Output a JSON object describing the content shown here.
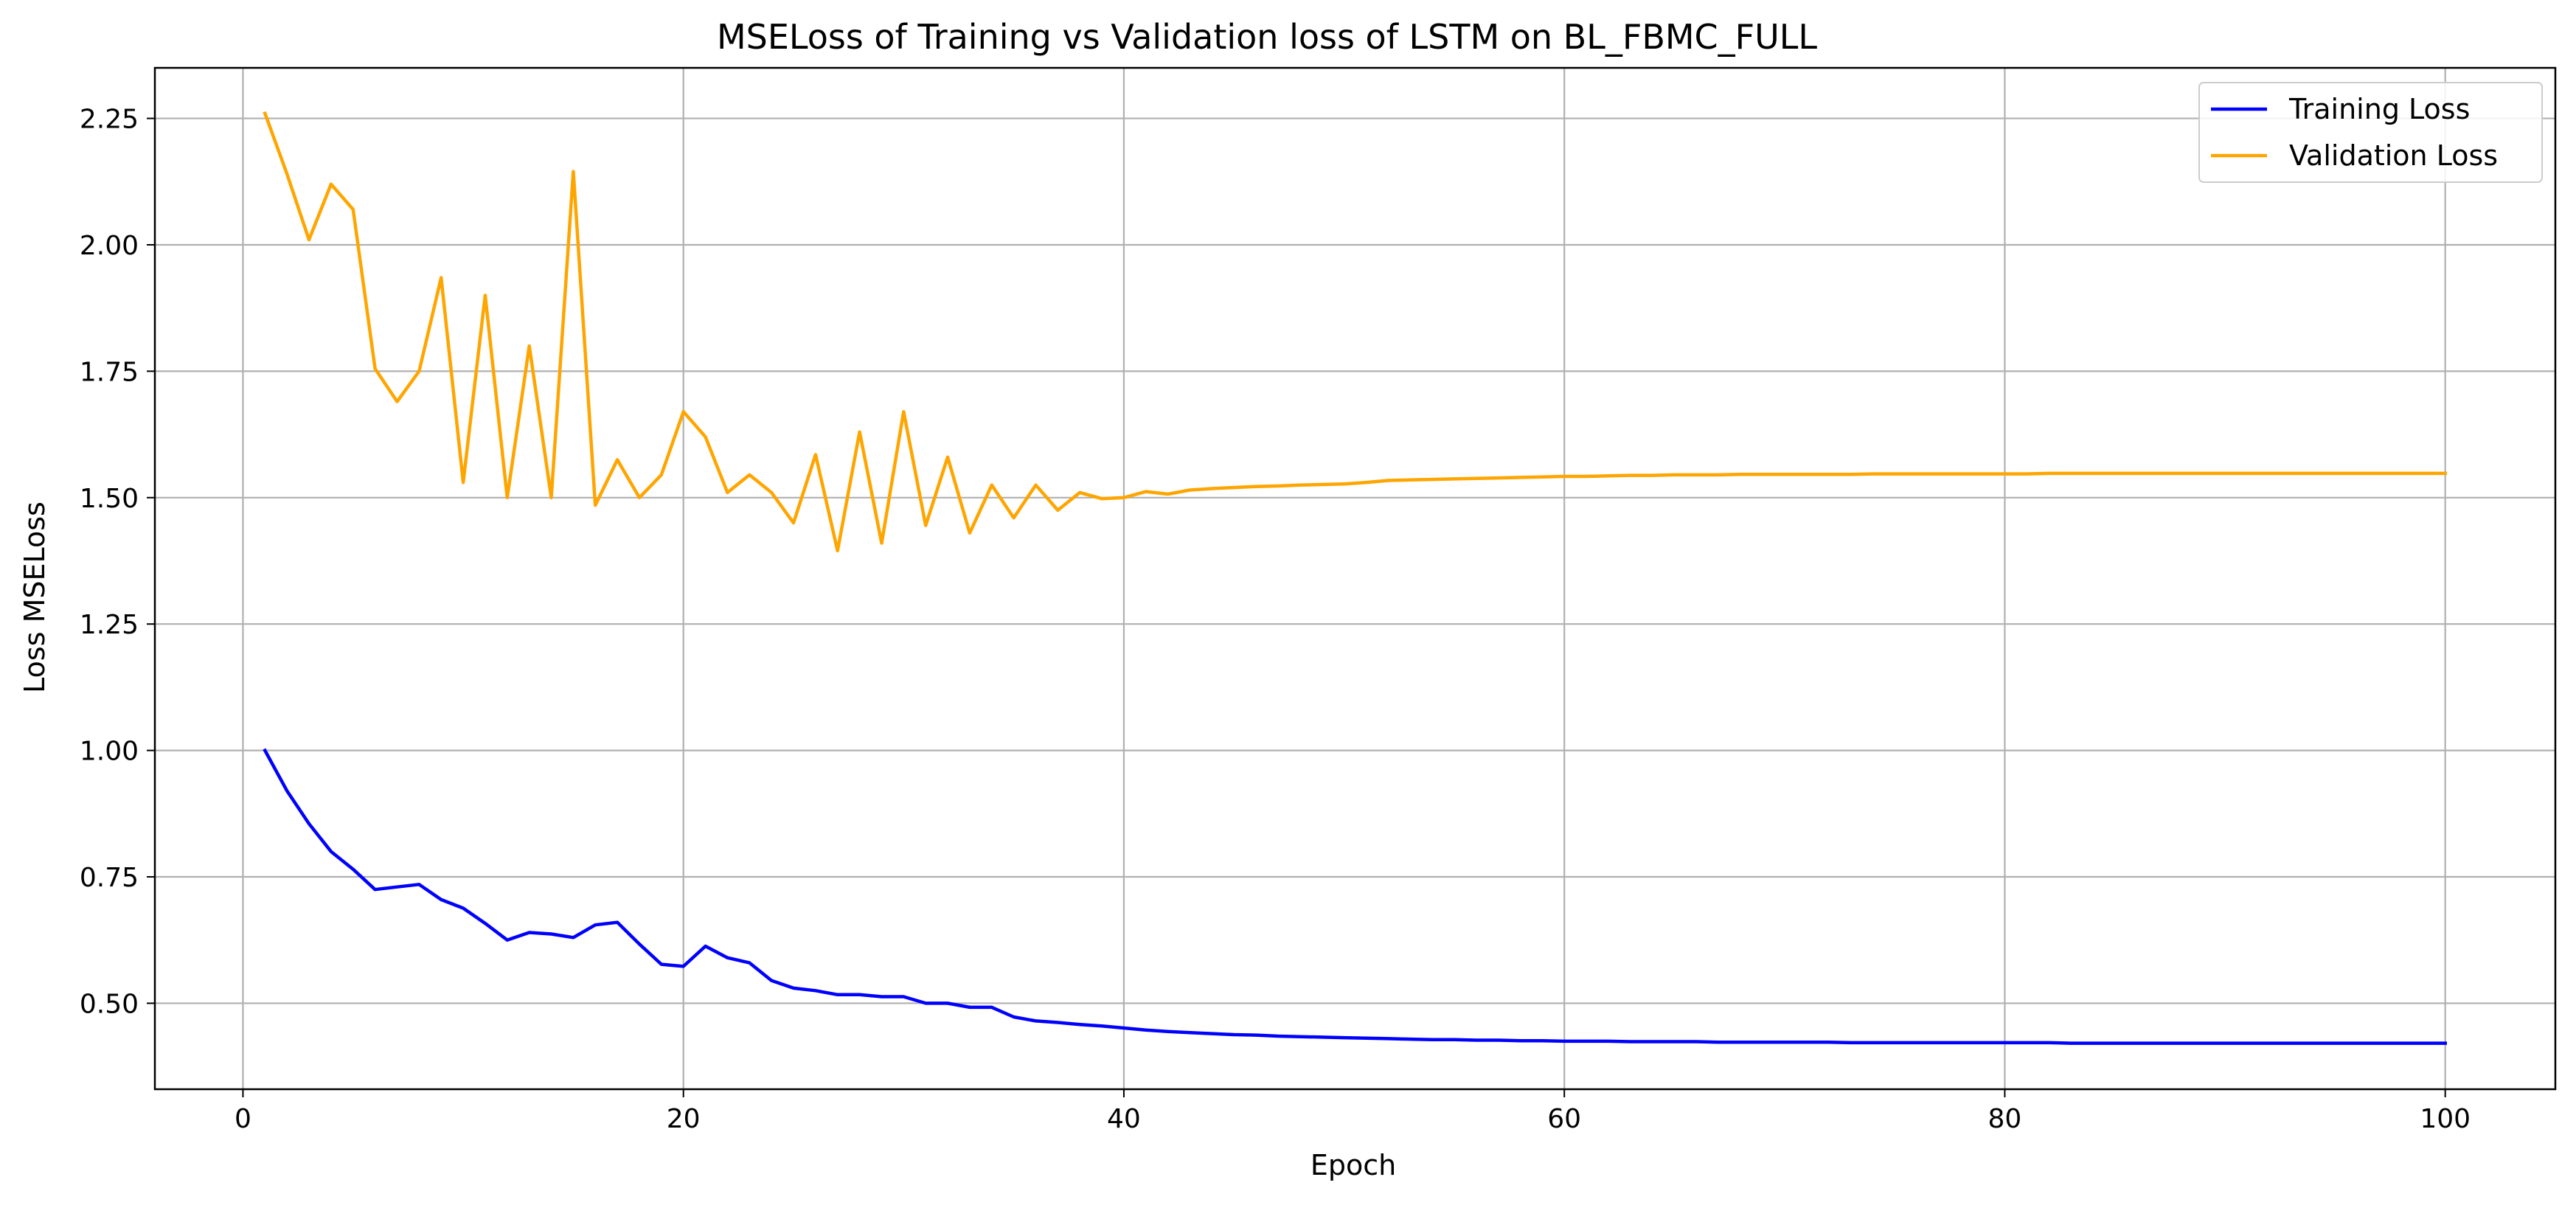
{
  "chart_data": {
    "type": "line",
    "title": "MSELoss of Training vs Validation loss of LSTM on BL_FBMC_FULL",
    "xlabel": "Epoch",
    "ylabel": "Loss MSELoss",
    "xlim": [
      -4,
      105
    ],
    "ylim": [
      0.33,
      2.35
    ],
    "xticks": [
      0,
      20,
      40,
      60,
      80,
      100
    ],
    "yticks": [
      0.5,
      0.75,
      1.0,
      1.25,
      1.5,
      1.75,
      2.0,
      2.25
    ],
    "ytick_labels": [
      "0.50",
      "0.75",
      "1.00",
      "1.25",
      "1.50",
      "1.75",
      "2.00",
      "2.25"
    ],
    "grid": true,
    "legend_position": "top-right",
    "x": [
      1,
      2,
      3,
      4,
      5,
      6,
      7,
      8,
      9,
      10,
      11,
      12,
      13,
      14,
      15,
      16,
      17,
      18,
      19,
      20,
      21,
      22,
      23,
      24,
      25,
      26,
      27,
      28,
      29,
      30,
      31,
      32,
      33,
      34,
      35,
      36,
      37,
      38,
      39,
      40,
      41,
      42,
      43,
      44,
      45,
      46,
      47,
      48,
      49,
      50,
      51,
      52,
      53,
      54,
      55,
      56,
      57,
      58,
      59,
      60,
      61,
      62,
      63,
      64,
      65,
      66,
      67,
      68,
      69,
      70,
      71,
      72,
      73,
      74,
      75,
      76,
      77,
      78,
      79,
      80,
      81,
      82,
      83,
      84,
      85,
      86,
      87,
      88,
      89,
      90,
      91,
      92,
      93,
      94,
      95,
      96,
      97,
      98,
      99,
      100
    ],
    "series": [
      {
        "name": "Training Loss",
        "color": "#0000ff",
        "values": [
          1.0,
          0.92,
          0.855,
          0.8,
          0.765,
          0.725,
          0.73,
          0.735,
          0.705,
          0.688,
          0.658,
          0.625,
          0.64,
          0.637,
          0.63,
          0.655,
          0.66,
          0.617,
          0.577,
          0.573,
          0.613,
          0.59,
          0.58,
          0.545,
          0.53,
          0.525,
          0.517,
          0.517,
          0.513,
          0.513,
          0.5,
          0.5,
          0.492,
          0.492,
          0.473,
          0.465,
          0.462,
          0.458,
          0.455,
          0.451,
          0.447,
          0.444,
          0.442,
          0.44,
          0.438,
          0.437,
          0.435,
          0.434,
          0.433,
          0.432,
          0.431,
          0.43,
          0.429,
          0.428,
          0.428,
          0.427,
          0.427,
          0.426,
          0.426,
          0.425,
          0.425,
          0.425,
          0.424,
          0.424,
          0.424,
          0.424,
          0.423,
          0.423,
          0.423,
          0.423,
          0.423,
          0.423,
          0.422,
          0.422,
          0.422,
          0.422,
          0.422,
          0.422,
          0.422,
          0.422,
          0.422,
          0.422,
          0.421,
          0.421,
          0.421,
          0.421,
          0.421,
          0.421,
          0.421,
          0.421,
          0.421,
          0.421,
          0.421,
          0.421,
          0.421,
          0.421,
          0.421,
          0.421,
          0.421,
          0.421
        ]
      },
      {
        "name": "Validation Loss",
        "color": "#ffa500",
        "values": [
          2.26,
          2.14,
          2.01,
          2.12,
          2.07,
          1.755,
          1.69,
          1.75,
          1.935,
          1.53,
          1.9,
          1.5,
          1.8,
          1.5,
          2.145,
          1.485,
          1.575,
          1.5,
          1.545,
          1.67,
          1.62,
          1.51,
          1.545,
          1.51,
          1.45,
          1.585,
          1.395,
          1.63,
          1.41,
          1.67,
          1.445,
          1.58,
          1.43,
          1.525,
          1.46,
          1.525,
          1.475,
          1.51,
          1.498,
          1.5,
          1.512,
          1.507,
          1.515,
          1.518,
          1.52,
          1.522,
          1.523,
          1.525,
          1.526,
          1.527,
          1.53,
          1.534,
          1.535,
          1.536,
          1.537,
          1.538,
          1.539,
          1.54,
          1.541,
          1.542,
          1.542,
          1.543,
          1.544,
          1.544,
          1.545,
          1.545,
          1.545,
          1.546,
          1.546,
          1.546,
          1.546,
          1.546,
          1.546,
          1.547,
          1.547,
          1.547,
          1.547,
          1.547,
          1.547,
          1.547,
          1.547,
          1.548,
          1.548,
          1.548,
          1.548,
          1.548,
          1.548,
          1.548,
          1.548,
          1.548,
          1.548,
          1.548,
          1.548,
          1.548,
          1.548,
          1.548,
          1.548,
          1.548,
          1.548,
          1.548
        ]
      }
    ]
  }
}
